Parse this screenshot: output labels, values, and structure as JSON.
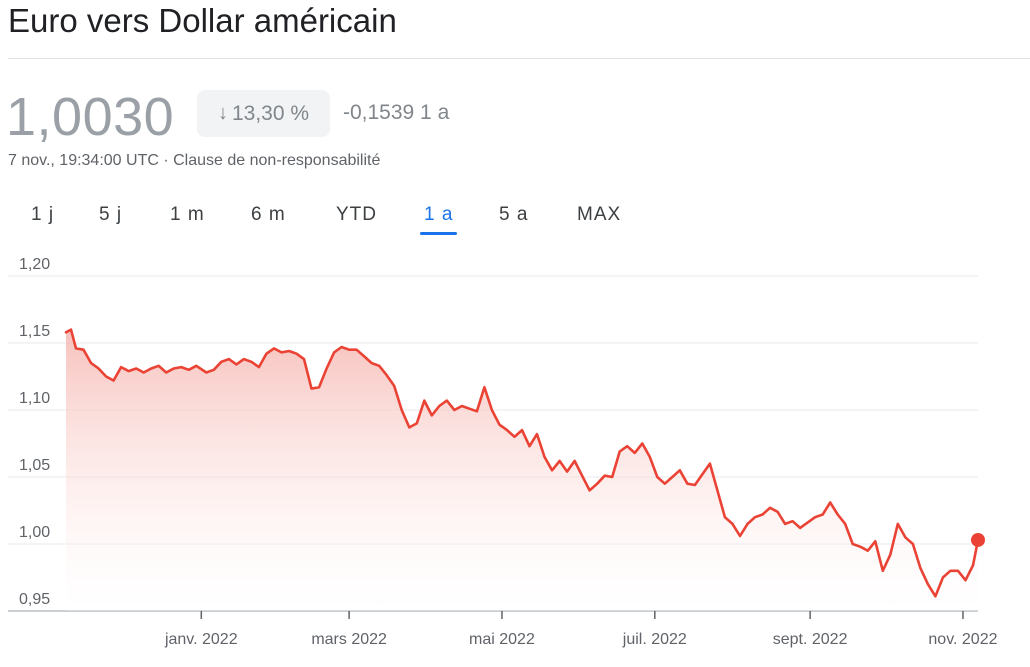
{
  "header": {
    "title": "Euro vers Dollar américain"
  },
  "quote": {
    "price": "1,0030",
    "change_pct": "13,30 %",
    "change_abs": "-0,1539 1 a",
    "timestamp": "7 nov., 19:34:00 UTC · ",
    "disclaimer": "Clause de non-responsabilité"
  },
  "tabs": [
    {
      "label": "1 j"
    },
    {
      "label": "5 j"
    },
    {
      "label": "1 m"
    },
    {
      "label": "6 m"
    },
    {
      "label": "YTD"
    },
    {
      "label": "1 a",
      "active": true
    },
    {
      "label": "5 a"
    },
    {
      "label": "MAX"
    }
  ],
  "colors": {
    "line": "#ea4335",
    "fill_top": "#f6b6b0",
    "grid": "#e8eaed",
    "axis": "#5f6368"
  },
  "icons": {
    "change_arrow": "arrow-down-icon"
  },
  "chart_data": {
    "type": "area",
    "title": "",
    "xlabel": "",
    "ylabel": "",
    "ylim": [
      0.95,
      1.2
    ],
    "xlim": [
      "2021-11-08",
      "2022-11-07"
    ],
    "y_ticks": [
      0.95,
      1.0,
      1.05,
      1.1,
      1.15,
      1.2
    ],
    "y_tick_labels": [
      "0,95",
      "1,00",
      "1,05",
      "1,10",
      "1,15",
      "1,20"
    ],
    "x_ticks": [
      {
        "date": "2022-01-01",
        "label": "janv. 2022"
      },
      {
        "date": "2022-03-01",
        "label": "mars 2022"
      },
      {
        "date": "2022-05-01",
        "label": "mai 2022"
      },
      {
        "date": "2022-07-01",
        "label": "juil. 2022"
      },
      {
        "date": "2022-09-01",
        "label": "sept. 2022"
      },
      {
        "date": "2022-11-01",
        "label": "nov. 2022"
      }
    ],
    "grid": true,
    "series": [
      {
        "x": [
          "2021-11-08",
          "2021-11-10",
          "2021-11-12",
          "2021-11-15",
          "2021-11-18",
          "2021-11-21",
          "2021-11-24",
          "2021-11-27",
          "2021-11-30",
          "2021-12-03",
          "2021-12-06",
          "2021-12-09",
          "2021-12-12",
          "2021-12-15",
          "2021-12-18",
          "2021-12-21",
          "2021-12-24",
          "2021-12-27",
          "2021-12-30",
          "2022-01-03",
          "2022-01-06",
          "2022-01-09",
          "2022-01-12",
          "2022-01-15",
          "2022-01-18",
          "2022-01-21",
          "2022-01-24",
          "2022-01-27",
          "2022-01-30",
          "2022-02-02",
          "2022-02-05",
          "2022-02-08",
          "2022-02-11",
          "2022-02-14",
          "2022-02-17",
          "2022-02-20",
          "2022-02-23",
          "2022-02-26",
          "2022-03-01",
          "2022-03-04",
          "2022-03-07",
          "2022-03-10",
          "2022-03-13",
          "2022-03-16",
          "2022-03-19",
          "2022-03-22",
          "2022-03-25",
          "2022-03-28",
          "2022-03-31",
          "2022-04-03",
          "2022-04-06",
          "2022-04-09",
          "2022-04-12",
          "2022-04-15",
          "2022-04-18",
          "2022-04-21",
          "2022-04-24",
          "2022-04-27",
          "2022-04-30",
          "2022-05-03",
          "2022-05-06",
          "2022-05-09",
          "2022-05-12",
          "2022-05-15",
          "2022-05-18",
          "2022-05-21",
          "2022-05-24",
          "2022-05-27",
          "2022-05-30",
          "2022-06-02",
          "2022-06-05",
          "2022-06-08",
          "2022-06-11",
          "2022-06-14",
          "2022-06-17",
          "2022-06-20",
          "2022-06-23",
          "2022-06-26",
          "2022-06-29",
          "2022-07-02",
          "2022-07-05",
          "2022-07-08",
          "2022-07-11",
          "2022-07-14",
          "2022-07-17",
          "2022-07-20",
          "2022-07-23",
          "2022-07-26",
          "2022-07-29",
          "2022-08-01",
          "2022-08-04",
          "2022-08-07",
          "2022-08-10",
          "2022-08-13",
          "2022-08-16",
          "2022-08-19",
          "2022-08-22",
          "2022-08-25",
          "2022-08-28",
          "2022-08-31",
          "2022-09-03",
          "2022-09-06",
          "2022-09-09",
          "2022-09-12",
          "2022-09-15",
          "2022-09-18",
          "2022-09-21",
          "2022-09-24",
          "2022-09-27",
          "2022-09-30",
          "2022-10-03",
          "2022-10-06",
          "2022-10-09",
          "2022-10-12",
          "2022-10-15",
          "2022-10-18",
          "2022-10-21",
          "2022-10-24",
          "2022-10-27",
          "2022-10-30",
          "2022-11-02",
          "2022-11-05",
          "2022-11-07"
        ],
        "values": [
          1.158,
          1.16,
          1.146,
          1.145,
          1.135,
          1.131,
          1.125,
          1.122,
          1.132,
          1.129,
          1.131,
          1.128,
          1.131,
          1.133,
          1.128,
          1.131,
          1.132,
          1.13,
          1.133,
          1.128,
          1.13,
          1.136,
          1.138,
          1.134,
          1.138,
          1.136,
          1.132,
          1.142,
          1.146,
          1.143,
          1.144,
          1.142,
          1.138,
          1.116,
          1.117,
          1.131,
          1.143,
          1.147,
          1.145,
          1.145,
          1.14,
          1.135,
          1.133,
          1.126,
          1.118,
          1.1,
          1.087,
          1.09,
          1.107,
          1.096,
          1.103,
          1.107,
          1.1,
          1.103,
          1.101,
          1.099,
          1.117,
          1.1,
          1.089,
          1.085,
          1.08,
          1.085,
          1.073,
          1.082,
          1.065,
          1.055,
          1.062,
          1.054,
          1.062,
          1.051,
          1.04,
          1.045,
          1.051,
          1.05,
          1.069,
          1.073,
          1.068,
          1.075,
          1.065,
          1.05,
          1.045,
          1.05,
          1.055,
          1.045,
          1.044,
          1.052,
          1.06,
          1.04,
          1.02,
          1.015,
          1.006,
          1.015,
          1.02,
          1.022,
          1.027,
          1.024,
          1.015,
          1.017,
          1.012,
          1.016,
          1.02,
          1.022,
          1.031,
          1.022,
          1.015,
          1.0,
          0.998,
          0.995,
          1.002,
          0.98,
          0.992,
          1.015,
          1.005,
          1.0,
          0.982,
          0.97,
          0.961,
          0.975,
          0.98,
          0.98,
          0.973,
          0.984,
          1.003
        ]
      }
    ]
  }
}
